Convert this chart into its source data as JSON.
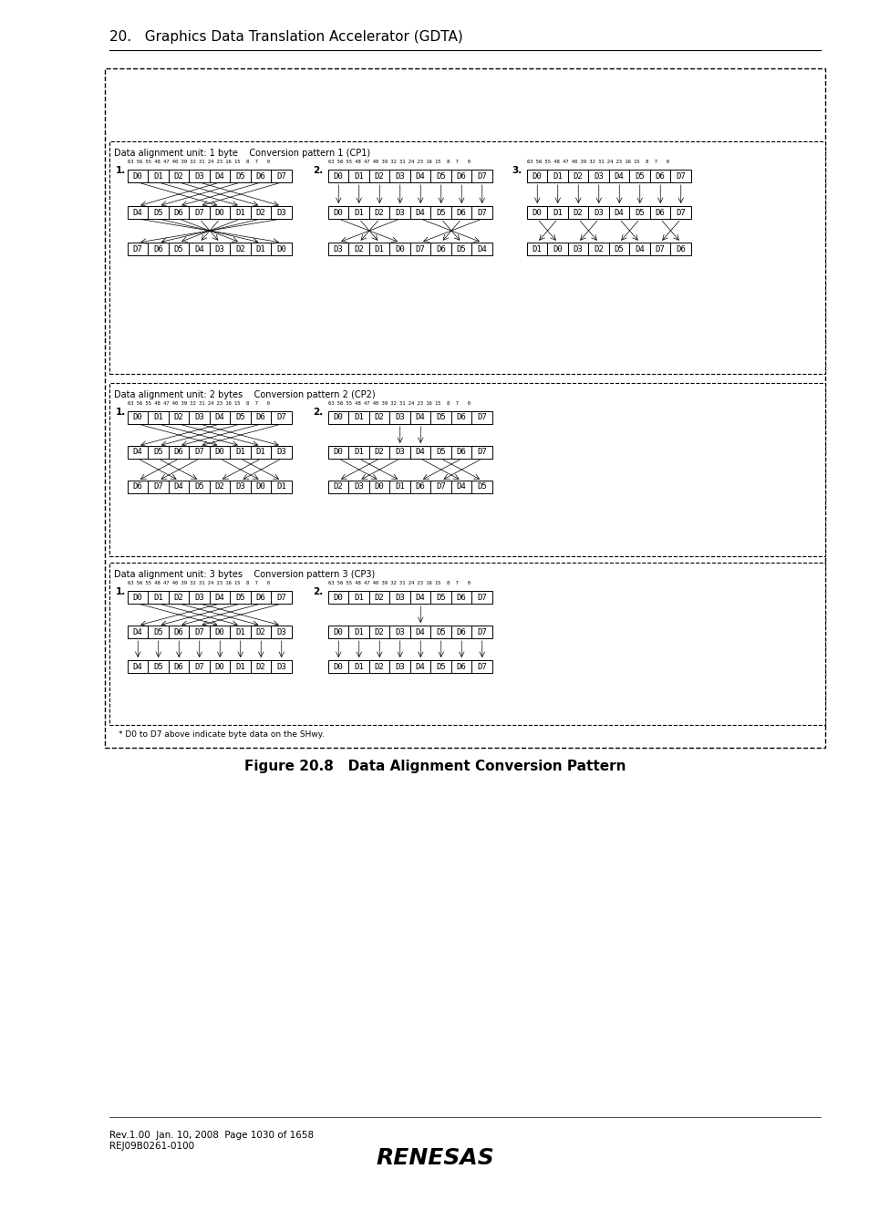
{
  "title": "20.   Graphics Data Translation Accelerator (GDTA)",
  "figure_caption": "Figure 20.8   Data Alignment Conversion Pattern",
  "footer_left": "Rev.1.00  Jan. 10, 2008  Page 1030 of 1658\nREJ09B0261-0100",
  "bg_color": "#ffffff",
  "box_border_color": "#000000",
  "cell_labels": [
    "D0",
    "D1",
    "D2",
    "D3",
    "D4",
    "D5",
    "D6",
    "D7"
  ],
  "bit_labels_full": "63 56 55 48 47 40 39 32 31 24 23 16 15  8  7   0",
  "footnote": "* D0 to D7 above indicate byte data on the SHwy."
}
